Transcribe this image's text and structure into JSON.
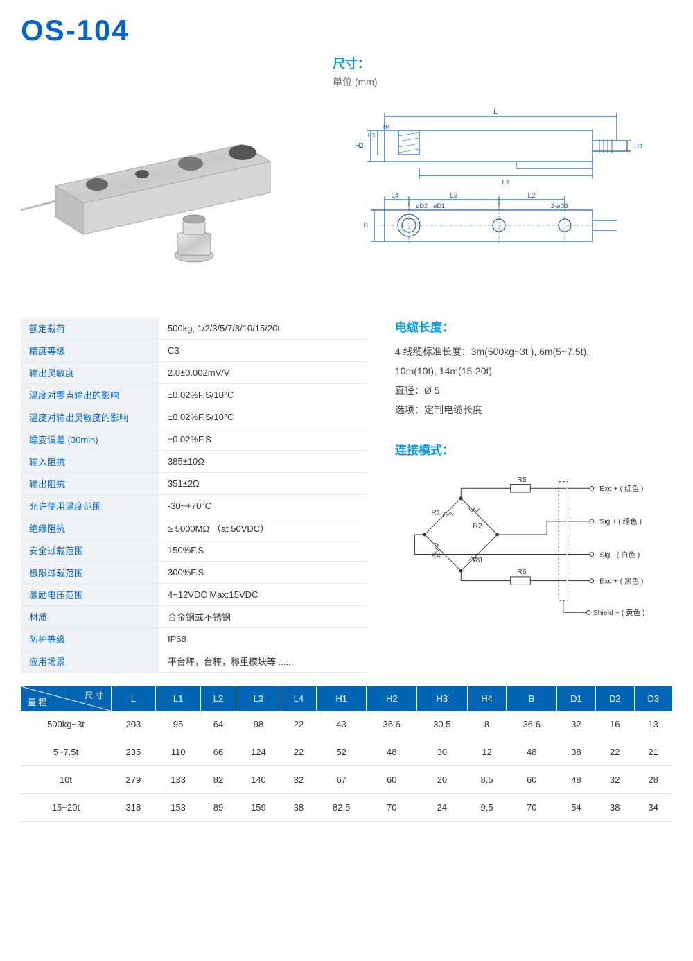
{
  "title": "OS-104",
  "dimensions_header": {
    "title": "尺寸：",
    "unit": "单位 (mm)"
  },
  "drawing_labels": {
    "L": "L",
    "L1": "L1",
    "L2": "L2",
    "L3": "L3",
    "L4": "L4",
    "H1": "H1",
    "H2": "H2",
    "H3": "H3",
    "H4": "H4",
    "B": "B",
    "oD1": "øD1",
    "oD2": "øD2",
    "twoOD3": "2-øD3"
  },
  "specs": [
    {
      "label": "额定载荷",
      "value": "500kg, 1/2/3/5/7/8/10/15/20t"
    },
    {
      "label": "精度等级",
      "value": "C3"
    },
    {
      "label": "输出灵敏度",
      "value": "2.0±0.002mV/V"
    },
    {
      "label": "温度对零点输出的影响",
      "value": "±0.02%F.S/10°C"
    },
    {
      "label": "温度对输出灵敏度的影响",
      "value": "±0.02%F.S/10°C"
    },
    {
      "label": "蠕变误差 (30min)",
      "value": "±0.02%F.S"
    },
    {
      "label": "输入阻抗",
      "value": "385±10Ω"
    },
    {
      "label": "输出阻抗",
      "value": "351±2Ω"
    },
    {
      "label": "允许使用温度范围",
      "value": "-30~+70°C"
    },
    {
      "label": "绝缘阻抗",
      "value": "≥ 5000MΩ （at 50VDC）"
    },
    {
      "label": "安全过载范围",
      "value": "150%F.S"
    },
    {
      "label": "极限过载范围",
      "value": "300%F.S"
    },
    {
      "label": "激励电压范围",
      "value": "4~12VDC  Max:15VDC"
    },
    {
      "label": "材质",
      "value": "合金钢或不锈钢"
    },
    {
      "label": "防护等级",
      "value": "IP68"
    },
    {
      "label": "应用场景",
      "value": "平台秤，台秤，称重模块等 ......"
    }
  ],
  "cable": {
    "title": "电缆长度：",
    "lines": [
      "4 线缆标准长度：3m(500kg~3t ), 6m(5~7.5t),",
      "10m(10t), 14m(15-20t)",
      "直径：Ø 5",
      "选项：定制电缆长度"
    ]
  },
  "connection": {
    "title": "连接模式：",
    "labels": {
      "R1": "R1",
      "R2": "R2",
      "R3": "R3",
      "R4": "R4",
      "R5": "R5",
      "R6": "R6",
      "exc_plus": "Exc + ( 红色 )",
      "sig_plus": "Sig + ( 绿色 )",
      "sig_minus": "Sig - ( 白色 )",
      "exc_minus": "Exc + ( 黑色 )",
      "shield": "Shield + ( 黄色 )"
    }
  },
  "dim_table": {
    "header_top": "尺  寸",
    "header_bottom": "量  程",
    "columns": [
      "L",
      "L1",
      "L2",
      "L3",
      "L4",
      "H1",
      "H2",
      "H3",
      "H4",
      "B",
      "D1",
      "D2",
      "D3"
    ],
    "rows": [
      {
        "range": "500kg~3t",
        "vals": [
          "203",
          "95",
          "64",
          "98",
          "22",
          "43",
          "36.6",
          "30.5",
          "8",
          "36.6",
          "32",
          "16",
          "13"
        ]
      },
      {
        "range": "5~7.5t",
        "vals": [
          "235",
          "110",
          "66",
          "124",
          "22",
          "52",
          "48",
          "30",
          "12",
          "48",
          "38",
          "22",
          "21"
        ]
      },
      {
        "range": "10t",
        "vals": [
          "279",
          "133",
          "82",
          "140",
          "32",
          "67",
          "60",
          "20",
          "8.5",
          "60",
          "48",
          "32",
          "28"
        ]
      },
      {
        "range": "15~20t",
        "vals": [
          "318",
          "153",
          "89",
          "159",
          "38",
          "82.5",
          "70",
          "24",
          "9.5",
          "70",
          "54",
          "38",
          "34"
        ]
      }
    ]
  },
  "colors": {
    "title_color": "#0066cc",
    "section_title_color": "#0099e5",
    "table_header_bg": "#0066b3",
    "spec_label_bg": "#f0f2f5",
    "drawing_stroke": "#1b5fa8"
  }
}
